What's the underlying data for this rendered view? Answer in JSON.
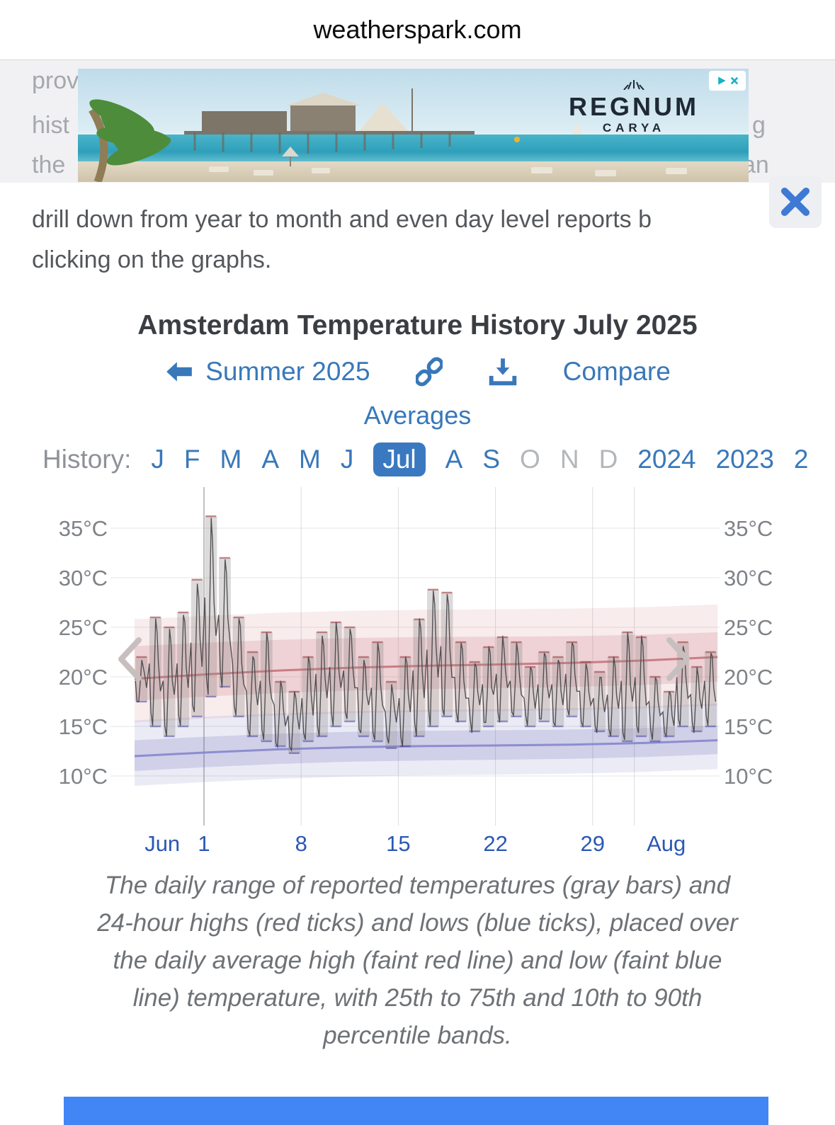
{
  "header": {
    "site": "weatherspark.com"
  },
  "ad": {
    "brand_mark": "\\\\|//",
    "brand_line1": "REGNUM",
    "brand_line2": "CARYA"
  },
  "intro": {
    "fragments": [
      "prov",
      "hist",
      "the",
      "g",
      "an"
    ],
    "line1": "drill down from year to month and even day level reports b",
    "line2": "clicking on the graphs."
  },
  "chart_header": {
    "title": "Amsterdam Temperature History July 2025",
    "prev_link": "Summer 2025",
    "compare_link": "Compare",
    "averages_link": "Averages"
  },
  "history_nav": {
    "label": "History:",
    "months": [
      {
        "label": "J",
        "state": "link"
      },
      {
        "label": "F",
        "state": "link"
      },
      {
        "label": "M",
        "state": "link"
      },
      {
        "label": "A",
        "state": "link"
      },
      {
        "label": "M",
        "state": "link"
      },
      {
        "label": "J",
        "state": "link"
      },
      {
        "label": "Jul",
        "state": "selected"
      },
      {
        "label": "A",
        "state": "link"
      },
      {
        "label": "S",
        "state": "link"
      },
      {
        "label": "O",
        "state": "disabled"
      },
      {
        "label": "N",
        "state": "disabled"
      },
      {
        "label": "D",
        "state": "disabled"
      }
    ],
    "years": [
      {
        "label": "2024"
      },
      {
        "label": "2023"
      },
      {
        "label": "2"
      }
    ]
  },
  "chart_data": {
    "type": "range-bar+line",
    "title": "Amsterdam Temperature History July 2025",
    "unit": "°C",
    "ylim": [
      8.5,
      37.5
    ],
    "y_ticks": [
      35,
      30,
      25,
      20,
      15,
      10
    ],
    "x_ticks": [
      {
        "label": "Jun",
        "day": 2
      },
      {
        "label": "1",
        "day": 5
      },
      {
        "label": "8",
        "day": 12
      },
      {
        "label": "15",
        "day": 19
      },
      {
        "label": "22",
        "day": 26
      },
      {
        "label": "29",
        "day": 33
      },
      {
        "label": "Aug",
        "day": 38.3
      }
    ],
    "gridline_days": [
      5,
      12,
      19,
      26,
      33,
      36
    ],
    "month_boundary_day": 5,
    "days": [
      {
        "date": "Jun 26",
        "low": 17.5,
        "high": 22
      },
      {
        "date": "Jun 27",
        "low": 15,
        "high": 26
      },
      {
        "date": "Jun 28",
        "low": 14,
        "high": 25
      },
      {
        "date": "Jun 29",
        "low": 15,
        "high": 26.5
      },
      {
        "date": "Jun 30",
        "low": 16,
        "high": 29.8
      },
      {
        "date": "Jul 1",
        "low": 18,
        "high": 36.2
      },
      {
        "date": "Jul 2",
        "low": 19,
        "high": 32
      },
      {
        "date": "Jul 3",
        "low": 16,
        "high": 26
      },
      {
        "date": "Jul 4",
        "low": 14,
        "high": 22.5
      },
      {
        "date": "Jul 5",
        "low": 13.5,
        "high": 24.5
      },
      {
        "date": "Jul 6",
        "low": 13,
        "high": 19.5
      },
      {
        "date": "Jul 7",
        "low": 12.3,
        "high": 18.5
      },
      {
        "date": "Jul 8",
        "low": 13.5,
        "high": 22
      },
      {
        "date": "Jul 9",
        "low": 14,
        "high": 24.5
      },
      {
        "date": "Jul 10",
        "low": 15,
        "high": 25.5
      },
      {
        "date": "Jul 11",
        "low": 15.5,
        "high": 25
      },
      {
        "date": "Jul 12",
        "low": 14,
        "high": 22
      },
      {
        "date": "Jul 13",
        "low": 13.5,
        "high": 23.5
      },
      {
        "date": "Jul 14",
        "low": 12.8,
        "high": 19.5
      },
      {
        "date": "Jul 15",
        "low": 13,
        "high": 22
      },
      {
        "date": "Jul 16",
        "low": 14,
        "high": 25.8
      },
      {
        "date": "Jul 17",
        "low": 15,
        "high": 28.8
      },
      {
        "date": "Jul 18",
        "low": 16,
        "high": 28.5
      },
      {
        "date": "Jul 19",
        "low": 15.5,
        "high": 23.5
      },
      {
        "date": "Jul 20",
        "low": 14.5,
        "high": 21.5
      },
      {
        "date": "Jul 21",
        "low": 15,
        "high": 23
      },
      {
        "date": "Jul 22",
        "low": 15.5,
        "high": 24
      },
      {
        "date": "Jul 23",
        "low": 16,
        "high": 23.5
      },
      {
        "date": "Jul 24",
        "low": 15,
        "high": 21
      },
      {
        "date": "Jul 25",
        "low": 15.5,
        "high": 22.5
      },
      {
        "date": "Jul 26",
        "low": 15,
        "high": 22
      },
      {
        "date": "Jul 27",
        "low": 16,
        "high": 23.5
      },
      {
        "date": "Jul 28",
        "low": 15,
        "high": 21.5
      },
      {
        "date": "Jul 29",
        "low": 14.5,
        "high": 20.5
      },
      {
        "date": "Jul 30",
        "low": 14,
        "high": 22
      },
      {
        "date": "Jul 31",
        "low": 13.5,
        "high": 24.5
      },
      {
        "date": "Aug 1",
        "low": 14,
        "high": 24
      },
      {
        "date": "Aug 2",
        "low": 13.5,
        "high": 20
      },
      {
        "date": "Aug 3",
        "low": 14,
        "high": 18.5
      },
      {
        "date": "Aug 4",
        "low": 15,
        "high": 23.5
      },
      {
        "date": "Aug 5",
        "low": 14.5,
        "high": 21
      },
      {
        "date": "Aug 6",
        "low": 15,
        "high": 22.5
      }
    ],
    "avg_high_line": {
      "start": 19.8,
      "end": 22.2
    },
    "avg_low_line": {
      "start": 12.0,
      "end": 13.8
    },
    "high_band_10_90": {
      "top_start": 25.8,
      "top_end": 27.5,
      "bottom_start": 15.4,
      "bottom_end": 17.3
    },
    "high_band_25_75": {
      "top_start": 23.1,
      "top_end": 24.7,
      "bottom_start": 17.6,
      "bottom_end": 19.7
    },
    "low_band_10_90": {
      "top_start": 15.6,
      "top_end": 17.5,
      "bottom_start": 9.0,
      "bottom_end": 10.9
    },
    "low_band_25_75": {
      "top_start": 13.6,
      "top_end": 15.3,
      "bottom_start": 10.5,
      "bottom_end": 12.4
    },
    "colors": {
      "band_red": "rgba(201,112,119,0.13)",
      "band_red_inner": "rgba(201,112,119,0.20)",
      "band_blue": "rgba(100,100,185,0.13)",
      "band_blue_inner": "rgba(100,100,185,0.20)",
      "avg_high": "#c4737a",
      "avg_low": "#8585cc",
      "bar": "rgba(140,134,134,0.30)",
      "hourly": "#454547",
      "tick_red": "#a04046",
      "tick_blue": "#41419a",
      "grid": "#e4e4e6",
      "vgrid": "#dddde0",
      "vgrid_month": "#a8a8ab",
      "chevron": "#c7bfbf"
    }
  },
  "caption": "The daily range of reported temperatures (gray bars) and 24-hour highs (red ticks) and lows (blue ticks), placed over the daily average high (faint red line) and low (faint blue line) temperature, with 25th to 75th and 10th to 90th percentile bands.",
  "colors": {
    "accent_blue": "#3878ba",
    "axis_label_blue": "#2a58b4",
    "pill_blue": "#3a79c0",
    "disabled_gray": "#b3b7bb",
    "close_blue": "#3e7ad3",
    "bottom_bar": "#4285f4",
    "adchoices_teal": "#17b1c5",
    "title": "#3a3e43",
    "body_text": "#54575b",
    "caption": "#6e7276"
  }
}
